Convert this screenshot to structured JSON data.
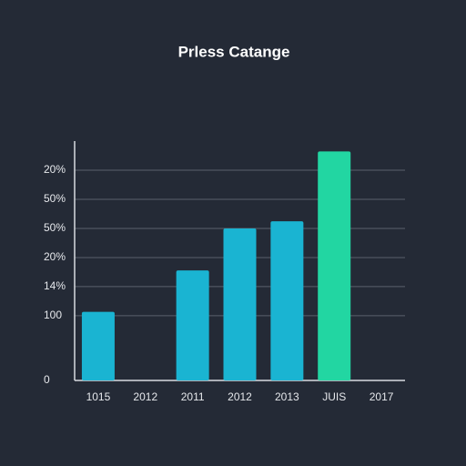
{
  "chart_data": {
    "type": "bar",
    "title": "Prless Catange",
    "categories": [
      "1015",
      "2012",
      "2011",
      "2012",
      "2013",
      "JUIS",
      "2017"
    ],
    "values": [
      106,
      null,
      170,
      235,
      246,
      354,
      null
    ],
    "colors": [
      "#1ab4d2",
      null,
      "#1ab4d2",
      "#1ab4d2",
      "#1ab4d2",
      "#22d6a2",
      null
    ],
    "ylim": [
      0,
      370
    ],
    "yticks": [
      0,
      100,
      {
        "value": 145,
        "label": "14%"
      },
      {
        "value": 190,
        "label": "20%"
      },
      {
        "value": 235,
        "label": "50%"
      },
      {
        "value": 280,
        "label": "50%"
      },
      {
        "value": 325,
        "label": "20%"
      }
    ],
    "grid": true
  }
}
